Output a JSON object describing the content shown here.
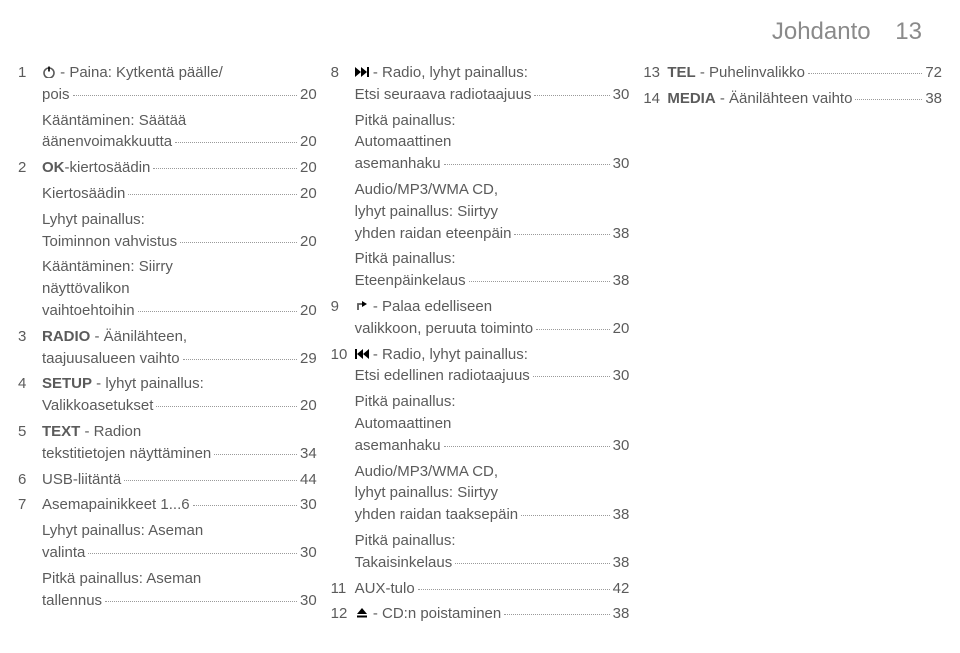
{
  "hdr": {
    "title": "Johdanto",
    "page": "13"
  },
  "col1": [
    {
      "num": "1",
      "icon": "power",
      "bold": false,
      "text": " - Paina: Kytkentä päälle/\npois",
      "pg": "20"
    },
    {
      "num": "",
      "text": "Kääntäminen: Säätää\näänenvoimakkuutta",
      "pg": "20"
    },
    {
      "num": "2",
      "bold": true,
      "boldtext": "OK",
      "text": "-kiertosäädin",
      "pg": "20"
    },
    {
      "num": "",
      "text": "Kiertosäädin",
      "pg": "20"
    },
    {
      "num": "",
      "text": "Lyhyt painallus:\nToiminnon vahvistus",
      "pg": "20"
    },
    {
      "num": "",
      "text": "Kääntäminen: Siirry\nnäyttövalikon\nvaihtoehtoihin",
      "pg": "20"
    },
    {
      "num": "3",
      "bold": true,
      "boldtext": "RADIO",
      "text": " - Äänilähteen,\ntaajuusalueen vaihto",
      "pg": "29"
    },
    {
      "num": "4",
      "bold": true,
      "boldtext": "SETUP",
      "text": " - lyhyt painallus:\nValikkoasetukset",
      "pg": "20"
    },
    {
      "num": "5",
      "bold": true,
      "boldtext": "TEXT",
      "text": " - Radion\ntekstitietojen näyttäminen",
      "pg": "34"
    },
    {
      "num": "6",
      "text": "USB-liitäntä",
      "pg": "44"
    },
    {
      "num": "7",
      "text": "Asemapainikkeet 1...6",
      "pg": "30"
    },
    {
      "num": "",
      "text": "Lyhyt painallus: Aseman\nvalinta",
      "pg": "30"
    },
    {
      "num": "",
      "text": "Pitkä painallus: Aseman\ntallennus",
      "pg": "30"
    }
  ],
  "col2": [
    {
      "num": "8",
      "icon": "ffwd",
      "text": " - Radio, lyhyt painallus:\nEtsi seuraava radiotaajuus",
      "pg": "30"
    },
    {
      "num": "",
      "text": "Pitkä painallus:\nAutomaattinen\nasemanhaku",
      "pg": "30"
    },
    {
      "num": "",
      "text": "Audio/MP3/WMA CD,\nlyhyt painallus: Siirtyy\nyhden raidan eteenpäin",
      "pg": "38"
    },
    {
      "num": "",
      "text": "Pitkä painallus:\nEteenpäinkelaus",
      "pg": "38"
    },
    {
      "num": "9",
      "icon": "back",
      "text": " - Palaa edelliseen\nvalikkoon, peruuta toiminto",
      "pg": "20"
    },
    {
      "num": "10",
      "icon": "rew",
      "text": " - Radio, lyhyt painallus:\nEtsi edellinen radiotaajuus",
      "pg": "30"
    },
    {
      "num": "",
      "text": "Pitkä painallus:\nAutomaattinen\nasemanhaku",
      "pg": "30"
    },
    {
      "num": "",
      "text": "Audio/MP3/WMA CD,\nlyhyt painallus: Siirtyy\nyhden raidan taaksepäin",
      "pg": "38"
    },
    {
      "num": "",
      "text": "Pitkä painallus:\nTakaisinkelaus",
      "pg": "38"
    },
    {
      "num": "11",
      "text": "AUX-tulo",
      "pg": "42"
    },
    {
      "num": "12",
      "icon": "eject",
      "text": " - CD:n poistaminen",
      "pg": "38"
    }
  ],
  "col3": [
    {
      "num": "13",
      "bold": true,
      "boldtext": "TEL",
      "text": " - Puhelinvalikko",
      "pg": "72"
    },
    {
      "num": "14",
      "bold": true,
      "boldtext": "MEDIA",
      "text": " - Äänilähteen vaihto",
      "pg": "38"
    }
  ]
}
